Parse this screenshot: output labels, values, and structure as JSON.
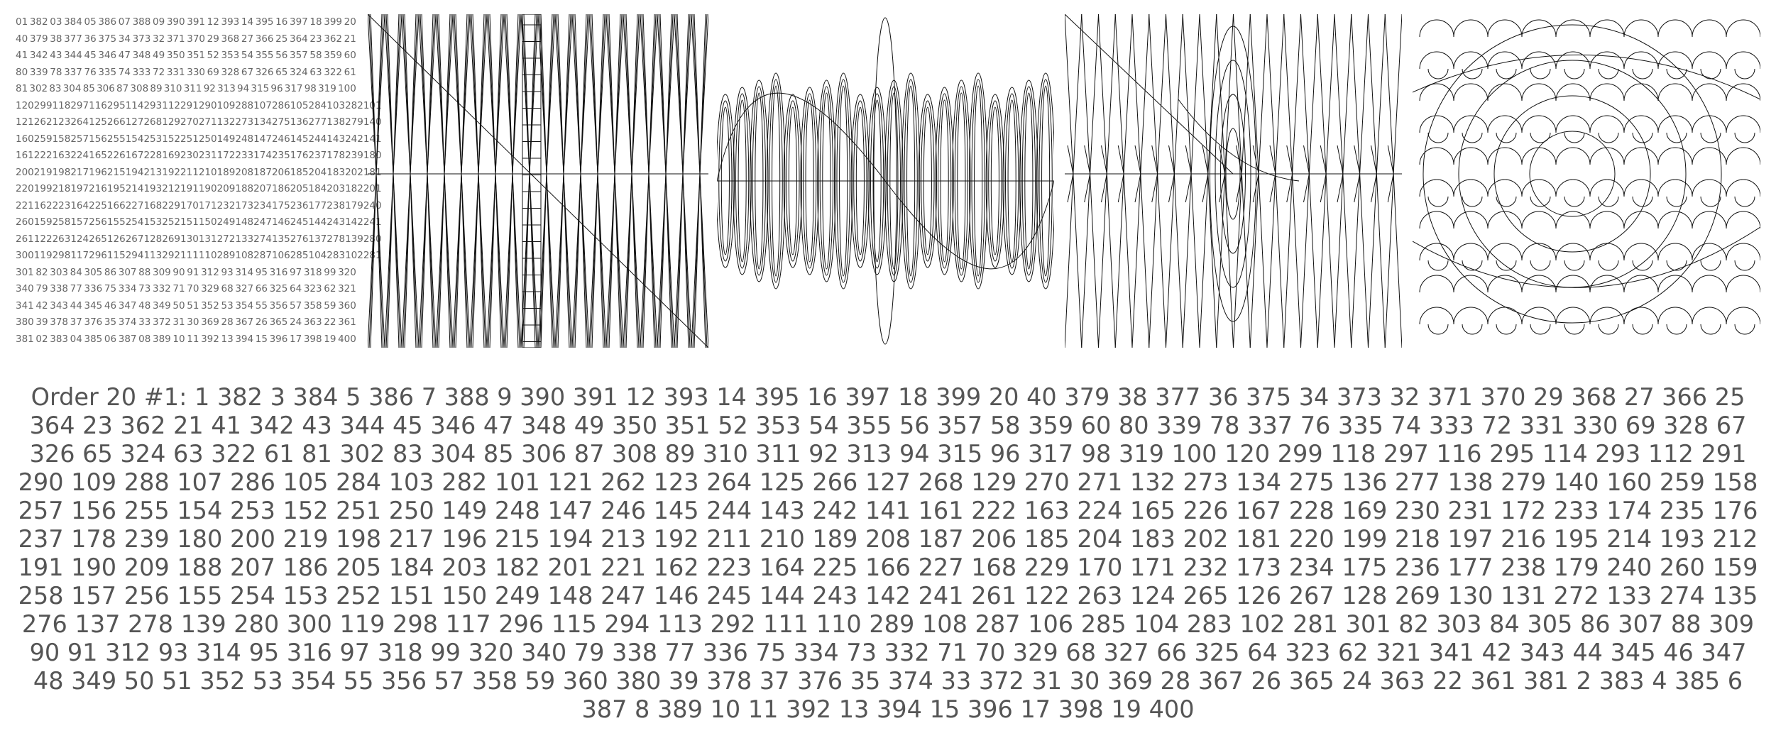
{
  "grid": {
    "rows": [
      [
        "01",
        "382",
        "03",
        "384",
        "05",
        "386",
        "07",
        "388",
        "09",
        "390",
        "391",
        "12",
        "393",
        "14",
        "395",
        "16",
        "397",
        "18",
        "399",
        "20"
      ],
      [
        "40",
        "379",
        "38",
        "377",
        "36",
        "375",
        "34",
        "373",
        "32",
        "371",
        "370",
        "29",
        "368",
        "27",
        "366",
        "25",
        "364",
        "23",
        "362",
        "21"
      ],
      [
        "41",
        "342",
        "43",
        "344",
        "45",
        "346",
        "47",
        "348",
        "49",
        "350",
        "351",
        "52",
        "353",
        "54",
        "355",
        "56",
        "357",
        "58",
        "359",
        "60"
      ],
      [
        "80",
        "339",
        "78",
        "337",
        "76",
        "335",
        "74",
        "333",
        "72",
        "331",
        "330",
        "69",
        "328",
        "67",
        "326",
        "65",
        "324",
        "63",
        "322",
        "61"
      ],
      [
        "81",
        "302",
        "83",
        "304",
        "85",
        "306",
        "87",
        "308",
        "89",
        "310",
        "311",
        "92",
        "313",
        "94",
        "315",
        "96",
        "317",
        "98",
        "319",
        "100"
      ],
      [
        "120",
        "299",
        "118",
        "297",
        "116",
        "295",
        "114",
        "293",
        "112",
        "291",
        "290",
        "109",
        "288",
        "107",
        "286",
        "105",
        "284",
        "103",
        "282",
        "101"
      ],
      [
        "121",
        "262",
        "123",
        "264",
        "125",
        "266",
        "127",
        "268",
        "129",
        "270",
        "271",
        "132",
        "273",
        "134",
        "275",
        "136",
        "277",
        "138",
        "279",
        "140"
      ],
      [
        "160",
        "259",
        "158",
        "257",
        "156",
        "255",
        "154",
        "253",
        "152",
        "251",
        "250",
        "149",
        "248",
        "147",
        "246",
        "145",
        "244",
        "143",
        "242",
        "141"
      ],
      [
        "161",
        "222",
        "163",
        "224",
        "165",
        "226",
        "167",
        "228",
        "169",
        "230",
        "231",
        "172",
        "233",
        "174",
        "235",
        "176",
        "237",
        "178",
        "239",
        "180"
      ],
      [
        "200",
        "219",
        "198",
        "217",
        "196",
        "215",
        "194",
        "213",
        "192",
        "211",
        "210",
        "189",
        "208",
        "187",
        "206",
        "185",
        "204",
        "183",
        "202",
        "181"
      ],
      [
        "220",
        "199",
        "218",
        "197",
        "216",
        "195",
        "214",
        "193",
        "212",
        "191",
        "190",
        "209",
        "188",
        "207",
        "186",
        "205",
        "184",
        "203",
        "182",
        "201"
      ],
      [
        "221",
        "162",
        "223",
        "164",
        "225",
        "166",
        "227",
        "168",
        "229",
        "170",
        "171",
        "232",
        "173",
        "234",
        "175",
        "236",
        "177",
        "238",
        "179",
        "240"
      ],
      [
        "260",
        "159",
        "258",
        "157",
        "256",
        "155",
        "254",
        "153",
        "252",
        "151",
        "150",
        "249",
        "148",
        "247",
        "146",
        "245",
        "144",
        "243",
        "142",
        "241"
      ],
      [
        "261",
        "122",
        "263",
        "124",
        "265",
        "126",
        "267",
        "128",
        "269",
        "130",
        "131",
        "272",
        "133",
        "274",
        "135",
        "276",
        "137",
        "278",
        "139",
        "280"
      ],
      [
        "300",
        "119",
        "298",
        "117",
        "296",
        "115",
        "294",
        "113",
        "292",
        "111",
        "110",
        "289",
        "108",
        "287",
        "106",
        "285",
        "104",
        "283",
        "102",
        "281"
      ],
      [
        "301",
        "82",
        "303",
        "84",
        "305",
        "86",
        "307",
        "88",
        "309",
        "90",
        "91",
        "312",
        "93",
        "314",
        "95",
        "316",
        "97",
        "318",
        "99",
        "320"
      ],
      [
        "340",
        "79",
        "338",
        "77",
        "336",
        "75",
        "334",
        "73",
        "332",
        "71",
        "70",
        "329",
        "68",
        "327",
        "66",
        "325",
        "64",
        "323",
        "62",
        "321"
      ],
      [
        "341",
        "42",
        "343",
        "44",
        "345",
        "46",
        "347",
        "48",
        "349",
        "50",
        "51",
        "352",
        "53",
        "354",
        "55",
        "356",
        "57",
        "358",
        "59",
        "360"
      ],
      [
        "380",
        "39",
        "378",
        "37",
        "376",
        "35",
        "374",
        "33",
        "372",
        "31",
        "30",
        "369",
        "28",
        "367",
        "26",
        "365",
        "24",
        "363",
        "22",
        "361"
      ],
      [
        "381",
        "02",
        "383",
        "04",
        "385",
        "06",
        "387",
        "08",
        "389",
        "10",
        "11",
        "392",
        "13",
        "394",
        "15",
        "396",
        "17",
        "398",
        "19",
        "400"
      ]
    ]
  },
  "sequence": {
    "label": "Order 20 #1:",
    "numbers": "1 382 3 384 5 386 7 388 9 390 391 12 393 14 395 16 397 18 399 20 40 379 38 377 36 375 34 373 32 371 370 29 368 27 366 25 364 23 362 21 41 342 43 344 45 346 47 348 49 350 351 52 353 54 355 56 357 58 359 60 80 339 78 337 76 335 74 333 72 331 330 69 328 67 326 65 324 63 322 61 81 302 83 304 85 306 87 308 89 310 311 92 313 94 315 96 317 98 319 100 120 299 118 297 116 295 114 293 112 291 290 109 288 107 286 105 284 103 282 101 121 262 123 264 125 266 127 268 129 270 271 132 273 134 275 136 277 138 279 140 160 259 158 257 156 255 154 253 152 251 250 149 248 147 246 145 244 143 242 141 161 222 163 224 165 226 167 228 169 230 231 172 233 174 235 176 237 178 239 180 200 219 198 217 196 215 194 213 192 211 210 189 208 187 206 185 204 183 202 181 220 199 218 197 216 195 214 193 212 191 190 209 188 207 186 205 184 203 182 201 221 162 223 164 225 166 227 168 229 170 171 232 173 234 175 236 177 238 179 240 260 159 258 157 256 155 254 153 252 151 150 249 148 247 146 245 144 243 142 241 261 122 263 124 265 126 267 128 269 130 131 272 133 274 135 276 137 278 139 280 300 119 298 117 296 115 294 113 292 111 110 289 108 287 106 285 104 283 102 281 301 82 303 84 305 86 307 88 309 90 91 312 93 314 95 316 97 318 99 320 340 79 338 77 336 75 334 73 332 71 70 329 68 327 66 325 64 323 62 321 341 42 343 44 345 46 347 48 349 50 51 352 53 354 55 356 57 358 59 360 380 39 378 37 376 35 374 33 372 31 30 369 28 367 26 365 24 363 22 361 381 2 383 4 385 6 387 8 389 10 11 392 13 394 15 396 17 398 19 400"
  }
}
